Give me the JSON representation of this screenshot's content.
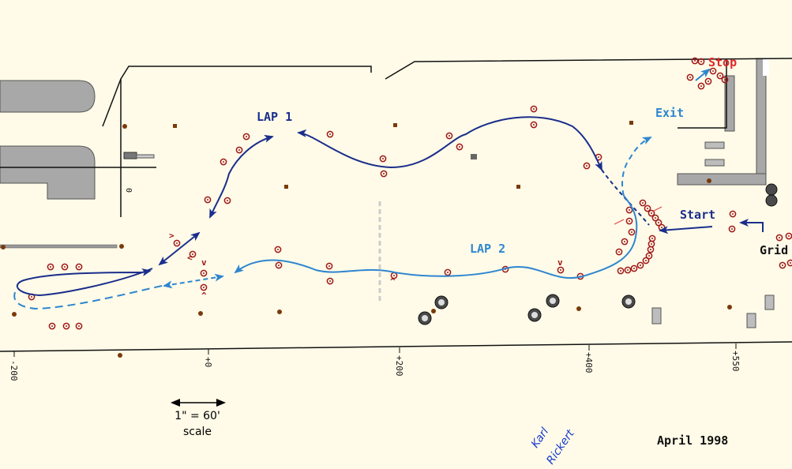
{
  "labels": {
    "lap1": "LAP 1",
    "lap2": "LAP 2",
    "start": "Start",
    "stop": "Stop",
    "exit": "Exit",
    "grid": "Grid",
    "date": "April 1998",
    "scale_ratio": "1\" = 60'",
    "scale_word": "scale",
    "signature_line1": "Karl",
    "signature_line2": "Rickert"
  },
  "ruler": [
    "-200",
    "+0",
    "+200",
    "+400",
    "+550"
  ],
  "marks": {
    "chevron_down": "v",
    "chevron_up": "^",
    "chevron_left": "<",
    "chevron_right": ">",
    "scale_zero": "0"
  },
  "colors": {
    "background": "#FFFBE8",
    "lap1": "#1A2E8C",
    "lap2": "#2E86D0",
    "cone": "#A01818",
    "stop": "#E02828",
    "pavement": "#A8A8A8",
    "marker": "#7A3A0A"
  }
}
